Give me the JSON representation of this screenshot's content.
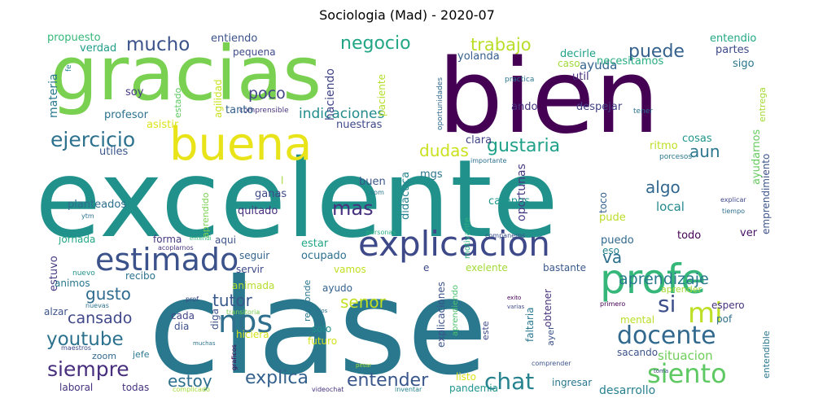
{
  "chart_data": {
    "type": "wordcloud",
    "title": "Sociologia (Mad) - 2020-07",
    "words": [
      {
        "text": "excelente",
        "weight": 100,
        "color": "#21918c"
      },
      {
        "text": "clase",
        "weight": 90,
        "color": "#2a788e"
      },
      {
        "text": "bien",
        "weight": 80,
        "color": "#440154"
      },
      {
        "text": "gracias",
        "weight": 74,
        "color": "#7ad151"
      },
      {
        "text": "buena",
        "weight": 40,
        "color": "#e8e419"
      },
      {
        "text": "profe",
        "weight": 34,
        "color": "#35b779"
      },
      {
        "text": "explicacion",
        "weight": 32,
        "color": "#3e4989"
      },
      {
        "text": "estimado",
        "weight": 29,
        "color": "#3b528b"
      },
      {
        "text": "nos",
        "weight": 26,
        "color": "#2e6f8e"
      },
      {
        "text": "mi",
        "weight": 24,
        "color": "#bddf26"
      },
      {
        "text": "siento",
        "weight": 22,
        "color": "#5ec962"
      },
      {
        "text": "docente",
        "weight": 21,
        "color": "#31688e"
      },
      {
        "text": "chat",
        "weight": 20,
        "color": "#26828e"
      },
      {
        "text": "ejercicio",
        "weight": 18,
        "color": "#2c728e"
      },
      {
        "text": "siempre",
        "weight": 18,
        "color": "#472f7d"
      },
      {
        "text": "youtube",
        "weight": 16,
        "color": "#2c728e"
      },
      {
        "text": "mucho",
        "weight": 16,
        "color": "#3b528b"
      },
      {
        "text": "negocio",
        "weight": 16,
        "color": "#21a685"
      },
      {
        "text": "trabajo",
        "weight": 15,
        "color": "#b8de29"
      },
      {
        "text": "puede",
        "weight": 15,
        "color": "#34618d"
      },
      {
        "text": "desarrollo",
        "weight": 14,
        "color": "#27808e"
      },
      {
        "text": "gustaria",
        "weight": 16,
        "color": "#1fa088"
      },
      {
        "text": "dudas",
        "weight": 14,
        "color": "#cae11f"
      },
      {
        "text": "aun",
        "weight": 14,
        "color": "#2a778e"
      },
      {
        "text": "algo",
        "weight": 14,
        "color": "#31678e"
      },
      {
        "text": "mas",
        "weight": 16,
        "color": "#46327e"
      },
      {
        "text": "si",
        "weight": 18,
        "color": "#3c4f8a"
      },
      {
        "text": "va",
        "weight": 14,
        "color": "#2d708e"
      },
      {
        "text": "aprendizaje",
        "weight": 14,
        "color": "#2a788e"
      },
      {
        "text": "tutor",
        "weight": 15,
        "color": "#38588c"
      },
      {
        "text": "senor",
        "weight": 14,
        "color": "#c2df23"
      },
      {
        "text": "gusto",
        "weight": 15,
        "color": "#2f6b8e"
      },
      {
        "text": "cansado",
        "weight": 14,
        "color": "#3f4788"
      },
      {
        "text": "poco",
        "weight": 14,
        "color": "#414487"
      },
      {
        "text": "indicaciones",
        "weight": 13,
        "color": "#228c8d"
      },
      {
        "text": "explica",
        "weight": 15,
        "color": "#34618d"
      },
      {
        "text": "entender",
        "weight": 15,
        "color": "#39568c"
      },
      {
        "text": "estoy",
        "weight": 14,
        "color": "#2d708e"
      },
      {
        "text": "situacion",
        "weight": 12,
        "color": "#6ece58"
      },
      {
        "text": "ayuda",
        "weight": 12,
        "color": "#33638d"
      },
      {
        "text": "propuesto",
        "weight": 10,
        "color": "#35b779"
      },
      {
        "text": "entiendo",
        "weight": 10,
        "color": "#3b528b"
      },
      {
        "text": "verdad",
        "weight": 10,
        "color": "#1f9e89"
      },
      {
        "text": "pequena",
        "weight": 9,
        "color": "#3e4a89"
      },
      {
        "text": "materia",
        "weight": 10,
        "color": "#2a788e"
      },
      {
        "text": "fe",
        "weight": 8,
        "color": "#277f8e"
      },
      {
        "text": "estado",
        "weight": 8,
        "color": "#5ec962"
      },
      {
        "text": "agilidad",
        "weight": 9,
        "color": "#cae11f"
      },
      {
        "text": "haciendo",
        "weight": 10,
        "color": "#414487"
      },
      {
        "text": "paciente",
        "weight": 9,
        "color": "#b5de2b"
      },
      {
        "text": "soy",
        "weight": 10,
        "color": "#443a83"
      },
      {
        "text": "comprensible",
        "weight": 7,
        "color": "#46337f"
      },
      {
        "text": "tanto",
        "weight": 10,
        "color": "#33638d"
      },
      {
        "text": "profesor",
        "weight": 10,
        "color": "#2c728e"
      },
      {
        "text": "asistir",
        "weight": 10,
        "color": "#dde318"
      },
      {
        "text": "utiles",
        "weight": 10,
        "color": "#39568c"
      },
      {
        "text": "nuestras",
        "weight": 10,
        "color": "#3f4889"
      },
      {
        "text": "entendio",
        "weight": 10,
        "color": "#22a884"
      },
      {
        "text": "partes",
        "weight": 10,
        "color": "#3e4989"
      },
      {
        "text": "sigo",
        "weight": 10,
        "color": "#2a768e"
      },
      {
        "text": "decirle",
        "weight": 10,
        "color": "#1fa187"
      },
      {
        "text": "necesitamos",
        "weight": 10,
        "color": "#27ad81"
      },
      {
        "text": "yolanda",
        "weight": 10,
        "color": "#355f8d"
      },
      {
        "text": "caso",
        "weight": 10,
        "color": "#a0da39"
      },
      {
        "text": "util",
        "weight": 10,
        "color": "#472d7b"
      },
      {
        "text": "practica",
        "weight": 7,
        "color": "#2a768e"
      },
      {
        "text": "oportunidades",
        "weight": 7,
        "color": "#31688e"
      },
      {
        "text": "ando",
        "weight": 10,
        "color": "#46327e"
      },
      {
        "text": "despejar",
        "weight": 10,
        "color": "#424186"
      },
      {
        "text": "tener",
        "weight": 7,
        "color": "#2c738e"
      },
      {
        "text": "entrega",
        "weight": 8,
        "color": "#a5db36"
      },
      {
        "text": "ayudarnos",
        "weight": 10,
        "color": "#65cb5e"
      },
      {
        "text": "emprendimiento",
        "weight": 9,
        "color": "#3b528b"
      },
      {
        "text": "cosas",
        "weight": 10,
        "color": "#1f958b"
      },
      {
        "text": "ritmo",
        "weight": 10,
        "color": "#bddf26"
      },
      {
        "text": "porcesos",
        "weight": 7,
        "color": "#2a788e"
      },
      {
        "text": "clara",
        "weight": 11,
        "color": "#414487"
      },
      {
        "text": "importante",
        "weight": 7,
        "color": "#2d708e"
      },
      {
        "text": "oportunas",
        "weight": 10,
        "color": "#453882"
      },
      {
        "text": "didactica",
        "weight": 10,
        "color": "#26828e"
      },
      {
        "text": "buen",
        "weight": 10,
        "color": "#39568c"
      },
      {
        "text": "mgs",
        "weight": 10,
        "color": "#2b758e"
      },
      {
        "text": "campos",
        "weight": 10,
        "color": "#1f968b"
      },
      {
        "text": "toco",
        "weight": 10,
        "color": "#34618d"
      },
      {
        "text": "local",
        "weight": 12,
        "color": "#23898e"
      },
      {
        "text": "explicar",
        "weight": 7,
        "color": "#3f4889"
      },
      {
        "text": "tiempo",
        "weight": 7,
        "color": "#2e6e8e"
      },
      {
        "text": "planteados",
        "weight": 11,
        "color": "#2e6e8e"
      },
      {
        "text": "ganas",
        "weight": 11,
        "color": "#3e4989"
      },
      {
        "text": "quitado",
        "weight": 11,
        "color": "#46327e"
      },
      {
        "text": "aprendido",
        "weight": 9,
        "color": "#7ad151"
      },
      {
        "text": "ytm",
        "weight": 7,
        "color": "#2c728e"
      },
      {
        "text": "som",
        "weight": 7,
        "color": "#2a788e"
      },
      {
        "text": "motivante",
        "weight": 9,
        "color": "#28ae80"
      },
      {
        "text": "pude",
        "weight": 10,
        "color": "#b8de29"
      },
      {
        "text": "ver",
        "weight": 10,
        "color": "#471164"
      },
      {
        "text": "jornada",
        "weight": 10,
        "color": "#22a785"
      },
      {
        "text": "forma",
        "weight": 10,
        "color": "#443983"
      },
      {
        "text": "aqui",
        "weight": 10,
        "color": "#3b528b"
      },
      {
        "text": "entendi",
        "weight": 7,
        "color": "#35b779"
      },
      {
        "text": "acoplarnos",
        "weight": 7,
        "color": "#46327e"
      },
      {
        "text": "personas",
        "weight": 7,
        "color": "#29af7f"
      },
      {
        "text": "companeros",
        "weight": 7,
        "color": "#3b528b"
      },
      {
        "text": "puedo",
        "weight": 10,
        "color": "#31688e"
      },
      {
        "text": "todo",
        "weight": 10,
        "color": "#440154"
      },
      {
        "text": "estar",
        "weight": 10,
        "color": "#22a785"
      },
      {
        "text": "eso",
        "weight": 10,
        "color": "#26828e"
      },
      {
        "text": "estuvo",
        "weight": 10,
        "color": "#443983"
      },
      {
        "text": "seguir",
        "weight": 10,
        "color": "#33638d"
      },
      {
        "text": "ocupado",
        "weight": 10,
        "color": "#2d708e"
      },
      {
        "text": "servir",
        "weight": 10,
        "color": "#3e4989"
      },
      {
        "text": "nuevo",
        "weight": 7,
        "color": "#21918c"
      },
      {
        "text": "recibo",
        "weight": 10,
        "color": "#2c728e"
      },
      {
        "text": "vamos",
        "weight": 10,
        "color": "#c2df23"
      },
      {
        "text": "e",
        "weight": 10,
        "color": "#3e4989"
      },
      {
        "text": "exelente",
        "weight": 10,
        "color": "#a2da37"
      },
      {
        "text": "bastante",
        "weight": 10,
        "color": "#38588c"
      },
      {
        "text": "animos",
        "weight": 10,
        "color": "#2a788e"
      },
      {
        "text": "animada",
        "weight": 10,
        "color": "#b5de2b"
      },
      {
        "text": "aprender",
        "weight": 9,
        "color": "#a5db36"
      },
      {
        "text": "prof",
        "weight": 7,
        "color": "#3e4989"
      },
      {
        "text": "responde",
        "weight": 9,
        "color": "#2a768e"
      },
      {
        "text": "ayudo",
        "weight": 10,
        "color": "#34618d"
      },
      {
        "text": "explicaciones",
        "weight": 9,
        "color": "#3b528b"
      },
      {
        "text": "aprendiendo",
        "weight": 8,
        "color": "#4ac16d"
      },
      {
        "text": "alzar",
        "weight": 10,
        "color": "#3b528b"
      },
      {
        "text": "nuevas",
        "weight": 7,
        "color": "#2c728e"
      },
      {
        "text": "cada",
        "weight": 10,
        "color": "#414487"
      },
      {
        "text": "diga",
        "weight": 10,
        "color": "#3b528b"
      },
      {
        "text": "transitoria",
        "weight": 7,
        "color": "#7ad151"
      },
      {
        "text": "dios",
        "weight": 7,
        "color": "#2c728e"
      },
      {
        "text": "exito",
        "weight": 7,
        "color": "#440154"
      },
      {
        "text": "varias",
        "weight": 7,
        "color": "#3e4989"
      },
      {
        "text": "obtener",
        "weight": 9,
        "color": "#46327e"
      },
      {
        "text": "primero",
        "weight": 7,
        "color": "#440154"
      },
      {
        "text": "espero",
        "weight": 10,
        "color": "#46327e"
      },
      {
        "text": "pof",
        "weight": 10,
        "color": "#2d708e"
      },
      {
        "text": "mental",
        "weight": 10,
        "color": "#b8de29"
      },
      {
        "text": "entendible",
        "weight": 9,
        "color": "#2a778e"
      },
      {
        "text": "dia",
        "weight": 10,
        "color": "#3b528b"
      },
      {
        "text": "solo",
        "weight": 10,
        "color": "#21918c"
      },
      {
        "text": "faltaria",
        "weight": 9,
        "color": "#2a788e"
      },
      {
        "text": "este",
        "weight": 9,
        "color": "#3e4989"
      },
      {
        "text": "hiciera",
        "weight": 10,
        "color": "#d2e21b"
      },
      {
        "text": "futuro",
        "weight": 10,
        "color": "#d2e21b"
      },
      {
        "text": "ayer",
        "weight": 9,
        "color": "#3b528b"
      },
      {
        "text": "sacando",
        "weight": 10,
        "color": "#3b528b"
      },
      {
        "text": "maestros",
        "weight": 7,
        "color": "#3e4989"
      },
      {
        "text": "zoom",
        "weight": 10,
        "color": "#31688e"
      },
      {
        "text": "jefe",
        "weight": 10,
        "color": "#2a788e"
      },
      {
        "text": "muchas",
        "weight": 7,
        "color": "#2c728e"
      },
      {
        "text": "graficos",
        "weight": 7,
        "color": "#440154"
      },
      {
        "text": "pesar",
        "weight": 7,
        "color": "#a2da37"
      },
      {
        "text": "comprender",
        "weight": 7,
        "color": "#3b528b"
      },
      {
        "text": "toma",
        "weight": 7,
        "color": "#3e4989"
      },
      {
        "text": "laboral",
        "weight": 10,
        "color": "#46327e"
      },
      {
        "text": "todas",
        "weight": 10,
        "color": "#46327e"
      },
      {
        "text": "complicado",
        "weight": 7,
        "color": "#a5db36"
      },
      {
        "text": "videochat",
        "weight": 7,
        "color": "#46327e"
      },
      {
        "text": "inventar",
        "weight": 7,
        "color": "#26828e"
      },
      {
        "text": "listo",
        "weight": 10,
        "color": "#dde318"
      },
      {
        "text": "pandemia",
        "weight": 10,
        "color": "#1f958b"
      },
      {
        "text": "ingresar",
        "weight": 10,
        "color": "#2a788e"
      },
      {
        "text": "l",
        "weight": 10,
        "color": "#a2da37"
      }
    ]
  }
}
